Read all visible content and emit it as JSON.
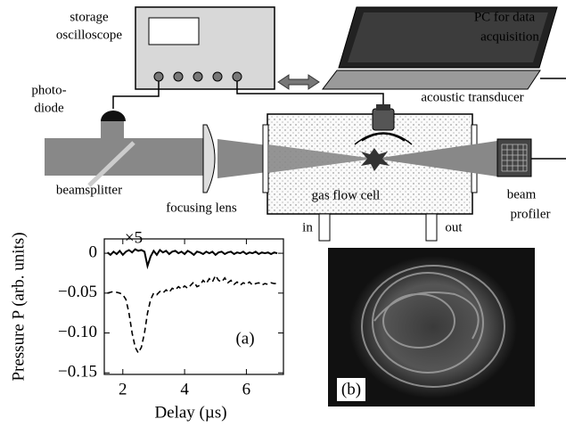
{
  "diagram": {
    "labels": {
      "storage_oscilloscope": [
        "storage",
        "oscilloscope"
      ],
      "pc": [
        "PC for data",
        "acquisition"
      ],
      "photodiode": [
        "photo-",
        "diode"
      ],
      "acoustic_transducer": "acoustic transducer",
      "beamsplitter": "beamsplitter",
      "focusing_lens": "focusing lens",
      "gas_flow_cell": "gas flow cell",
      "beam_profiler": [
        "beam",
        "profiler"
      ],
      "in": "in",
      "out": "out",
      "panel_b": "(b)"
    }
  },
  "chart_data": {
    "type": "line",
    "panel_label": "(a)",
    "annotation": "×5",
    "xlabel": "Delay (µs)",
    "ylabel": "Pressure P (arb. units)",
    "x": [
      1.5,
      1.6,
      1.7,
      1.8,
      1.9,
      2.0,
      2.1,
      2.2,
      2.3,
      2.4,
      2.5,
      2.6,
      2.7,
      2.8,
      2.9,
      3.0,
      3.1,
      3.2,
      3.3,
      3.4,
      3.5,
      3.6,
      3.7,
      3.8,
      3.9,
      4.0,
      4.1,
      4.2,
      4.3,
      4.4,
      4.5,
      4.6,
      4.7,
      4.8,
      4.9,
      5.0,
      5.1,
      5.2,
      5.3,
      5.4,
      5.5,
      5.6,
      5.7,
      5.8,
      5.9,
      6.0,
      6.1,
      6.2,
      6.3,
      6.4,
      6.5,
      6.6,
      6.7,
      6.8,
      6.9,
      7.0
    ],
    "series": [
      {
        "color": "#000000",
        "style": "solid",
        "values": [
          0.001,
          -0.002,
          0.002,
          -0.001,
          0.003,
          -0.002,
          0.002,
          0.004,
          0.001,
          0.005,
          0.003,
          0.004,
          0.002,
          -0.016,
          -0.004,
          0.003,
          -0.002,
          0.004,
          0.001,
          0.003,
          -0.001,
          0.002,
          0.003,
          0.0,
          0.002,
          -0.001,
          0.003,
          0.001,
          -0.002,
          0.002,
          0.001,
          -0.001,
          0.002,
          0.0,
          0.002,
          -0.002,
          0.001,
          0.002,
          -0.001,
          0.001,
          0.002,
          -0.001,
          0.001,
          0.0,
          0.002,
          -0.001,
          0.001,
          0.0,
          0.002,
          -0.001,
          0.001,
          0.0,
          0.001,
          -0.001,
          0.001,
          0.0
        ]
      },
      {
        "color": "#000000",
        "style": "dashed",
        "values": [
          -0.05,
          -0.049,
          -0.048,
          -0.049,
          -0.05,
          -0.052,
          -0.058,
          -0.075,
          -0.1,
          -0.118,
          -0.125,
          -0.118,
          -0.1,
          -0.075,
          -0.058,
          -0.05,
          -0.052,
          -0.048,
          -0.05,
          -0.046,
          -0.049,
          -0.044,
          -0.046,
          -0.042,
          -0.045,
          -0.041,
          -0.044,
          -0.04,
          -0.036,
          -0.042,
          -0.04,
          -0.034,
          -0.038,
          -0.032,
          -0.036,
          -0.028,
          -0.034,
          -0.036,
          -0.031,
          -0.037,
          -0.034,
          -0.039,
          -0.036,
          -0.04,
          -0.037,
          -0.039,
          -0.036,
          -0.04,
          -0.038,
          -0.037,
          -0.04,
          -0.038,
          -0.039,
          -0.037,
          -0.038,
          -0.038
        ]
      }
    ],
    "xlim": [
      1.4,
      7.2
    ],
    "ylim": [
      -0.152,
      0.018
    ],
    "xticks": [
      2,
      4,
      6
    ],
    "yticks": [
      0,
      {
        "value": -0.05,
        "label": "−0.05"
      },
      {
        "value": -0.1,
        "label": "−0.10"
      },
      {
        "value": -0.15,
        "label": "−0.15"
      }
    ]
  }
}
